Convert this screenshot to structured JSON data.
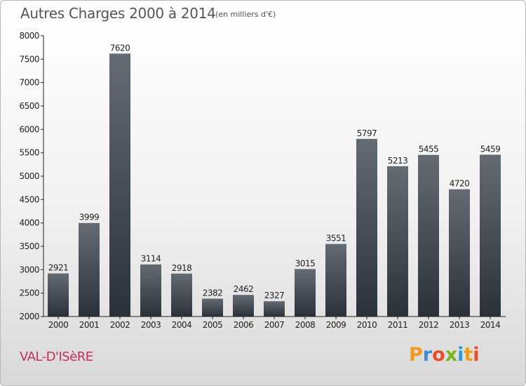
{
  "header": {
    "title": "Autres Charges 2000 à 2014",
    "subtitle": "(en milliers d'€)"
  },
  "footer": {
    "place": "VAL-D'ISèRE",
    "logo": "Proxiti"
  },
  "colors": {
    "bar_top": "#646b73",
    "bar_bottom": "#2b3138",
    "place": "#c0305a",
    "logo_letters": [
      "#f29a1e",
      "#3a8fd6",
      "#e94c2a",
      "#7ab51d",
      "#2d9ad8",
      "#f29a1e",
      "#e94c2a"
    ]
  },
  "chart_data": {
    "type": "bar",
    "title": "Autres Charges 2000 à 2014",
    "subtitle": "(en milliers d'€)",
    "categories": [
      "2000",
      "2001",
      "2002",
      "2003",
      "2004",
      "2005",
      "2006",
      "2007",
      "2008",
      "2009",
      "2010",
      "2011",
      "2012",
      "2013",
      "2014"
    ],
    "values": [
      2921,
      3999,
      7620,
      3114,
      2918,
      2382,
      2462,
      2327,
      3015,
      3551,
      5797,
      5213,
      5455,
      4720,
      5459
    ],
    "ylim": [
      2000,
      8000
    ],
    "yticks": [
      2000,
      2500,
      3000,
      3500,
      4000,
      4500,
      5000,
      5500,
      6000,
      6500,
      7000,
      7500,
      8000
    ],
    "grid": false,
    "data_labels": true
  }
}
